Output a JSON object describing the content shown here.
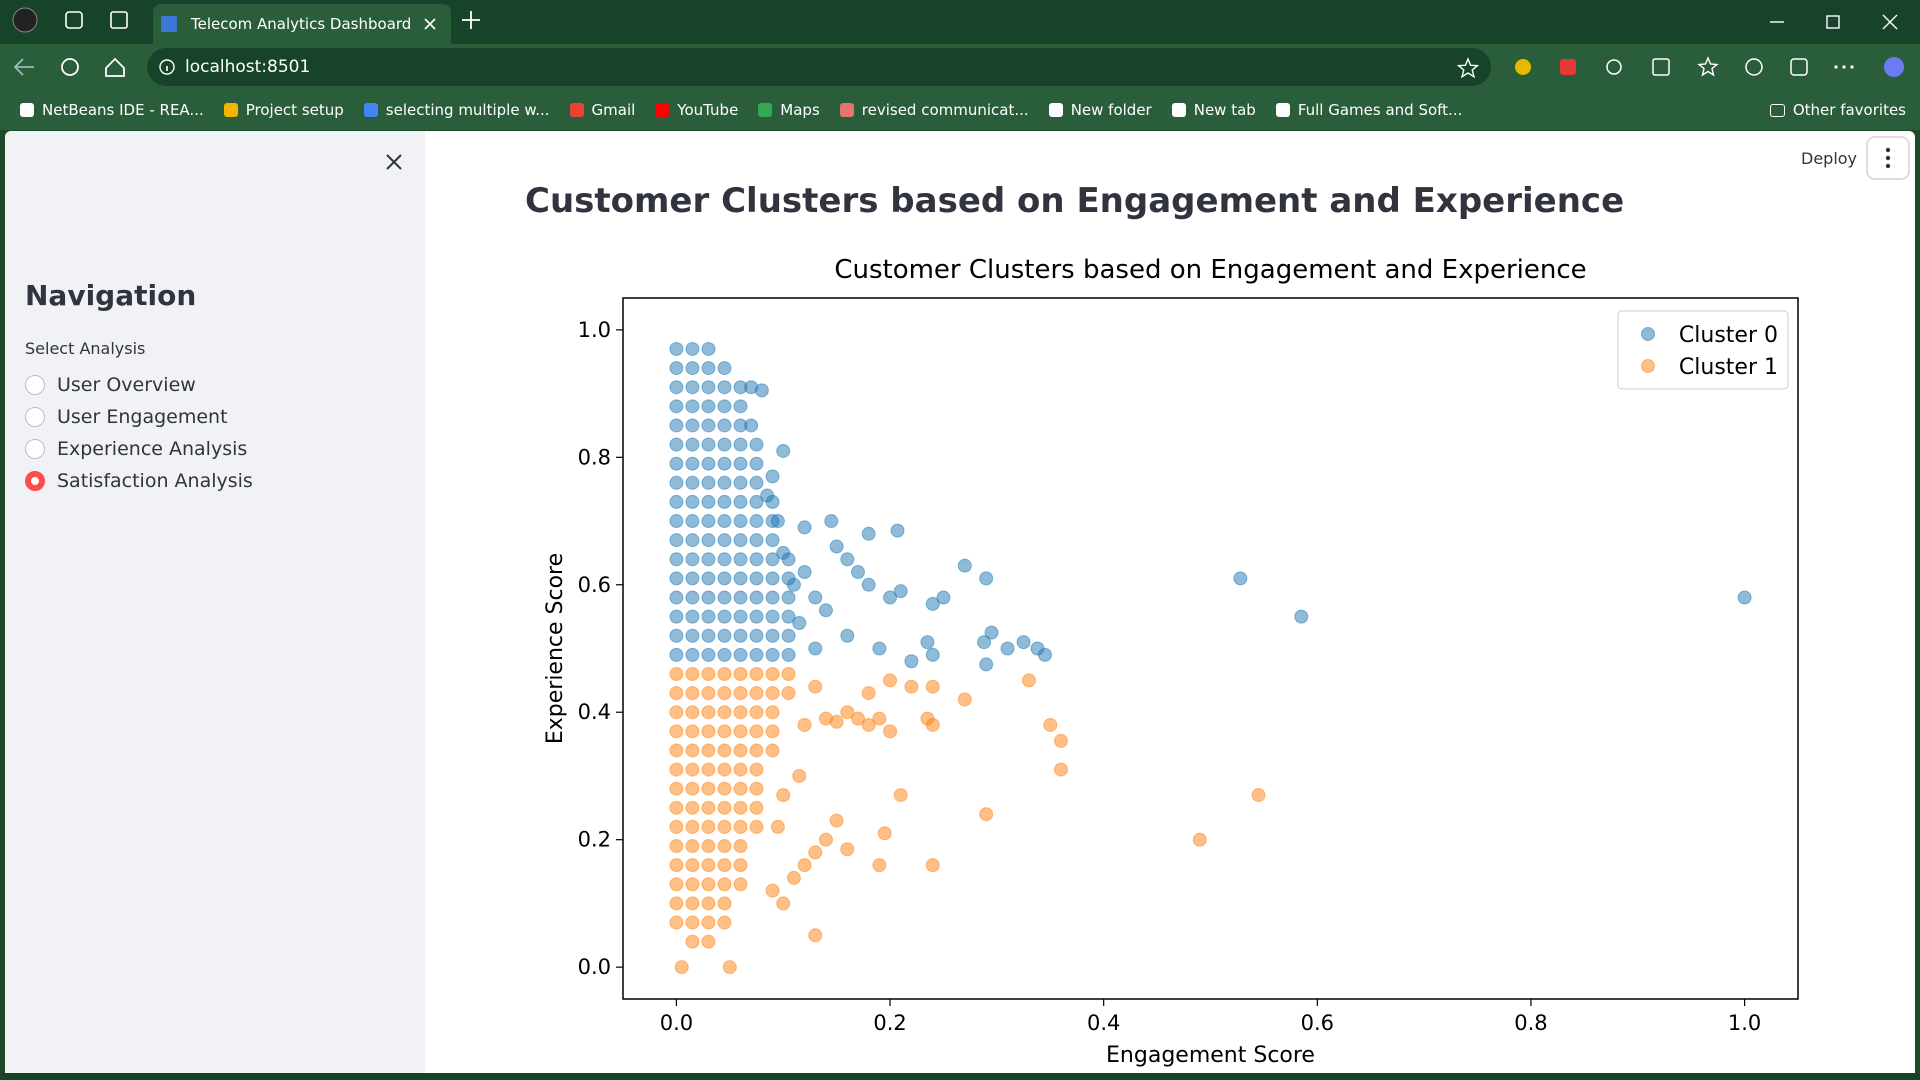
{
  "browser": {
    "tab_title": "Telecom Analytics Dashboard",
    "url": "localhost:8501",
    "bookmarks": [
      "NetBeans IDE - REA...",
      "Project setup",
      "selecting multiple w...",
      "Gmail",
      "YouTube",
      "Maps",
      "revised communicat...",
      "New folder",
      "New tab",
      "Full Games and Soft..."
    ],
    "other_favorites": "Other favorites"
  },
  "app": {
    "deploy": "Deploy",
    "header": "Customer Clusters based on Engagement and Experience",
    "sidebar": {
      "title": "Navigation",
      "select_label": "Select Analysis",
      "options": [
        "User Overview",
        "User Engagement",
        "Experience Analysis",
        "Satisfaction Analysis"
      ],
      "selected": 3
    }
  },
  "chart_data": {
    "type": "scatter",
    "title": "Customer Clusters based on Engagement and Experience",
    "x_label": "Engagement Score",
    "y_label": "Experience Score",
    "xlim": [
      -0.05,
      1.05
    ],
    "ylim": [
      -0.05,
      1.05
    ],
    "xticks": [
      {
        "value": 0,
        "label": "0.0"
      },
      0.2,
      0.4,
      0.6,
      0.8,
      {
        "value": 1,
        "label": "1.0"
      }
    ],
    "yticks": [
      {
        "value": 0,
        "label": "0.0"
      },
      0.2,
      0.4,
      0.6,
      0.8,
      {
        "value": 1,
        "label": "1.0"
      }
    ],
    "legend": "upper right",
    "grid": false,
    "series": [
      {
        "name": "Cluster 0",
        "color": "#1f77b4",
        "x": [
          0,
          0.015,
          0.03,
          0,
          0.015,
          0.03,
          0.045,
          0,
          0.015,
          0.03,
          0.045,
          0.06,
          0,
          0.015,
          0.03,
          0.045,
          0.06,
          0,
          0.015,
          0.03,
          0.045,
          0.06,
          0,
          0.015,
          0.03,
          0.045,
          0.06,
          0.075,
          0,
          0.015,
          0.03,
          0.045,
          0.06,
          0.075,
          0,
          0.015,
          0.03,
          0.045,
          0.06,
          0.075,
          0,
          0.015,
          0.03,
          0.045,
          0.06,
          0.075,
          0.09,
          0,
          0.015,
          0.03,
          0.045,
          0.06,
          0.075,
          0.09,
          0,
          0.015,
          0.03,
          0.045,
          0.06,
          0.075,
          0.09,
          0,
          0.015,
          0.03,
          0.045,
          0.06,
          0.075,
          0.09,
          0.105,
          0,
          0.015,
          0.03,
          0.045,
          0.06,
          0.075,
          0.09,
          0.105,
          0,
          0.015,
          0.03,
          0.045,
          0.06,
          0.075,
          0.09,
          0.105,
          0,
          0.015,
          0.03,
          0.045,
          0.06,
          0.075,
          0.09,
          0.105,
          0,
          0.015,
          0.03,
          0.045,
          0.06,
          0.075,
          0.09,
          0.105,
          0,
          0.015,
          0.03,
          0.045,
          0.06,
          0.075,
          0.09,
          0.105,
          1.0,
          0.528,
          0.585,
          0.29,
          0.27,
          0.25,
          0.24,
          0.235,
          0.24,
          0.288,
          0.295,
          0.31,
          0.325,
          0.338,
          0.345,
          0.29,
          0.207,
          0.18,
          0.145,
          0.12,
          0.1,
          0.08,
          0.07,
          0.2,
          0.21,
          0.18,
          0.17,
          0.16,
          0.15,
          0.14,
          0.13,
          0.12,
          0.11,
          0.1,
          0.095,
          0.085,
          0.09,
          0.07,
          0.22,
          0.19,
          0.16,
          0.13,
          0.115
        ],
        "y": [
          0.97,
          0.97,
          0.97,
          0.94,
          0.94,
          0.94,
          0.94,
          0.91,
          0.91,
          0.91,
          0.91,
          0.91,
          0.88,
          0.88,
          0.88,
          0.88,
          0.88,
          0.85,
          0.85,
          0.85,
          0.85,
          0.85,
          0.82,
          0.82,
          0.82,
          0.82,
          0.82,
          0.82,
          0.79,
          0.79,
          0.79,
          0.79,
          0.79,
          0.79,
          0.76,
          0.76,
          0.76,
          0.76,
          0.76,
          0.76,
          0.73,
          0.73,
          0.73,
          0.73,
          0.73,
          0.73,
          0.73,
          0.7,
          0.7,
          0.7,
          0.7,
          0.7,
          0.7,
          0.7,
          0.67,
          0.67,
          0.67,
          0.67,
          0.67,
          0.67,
          0.67,
          0.64,
          0.64,
          0.64,
          0.64,
          0.64,
          0.64,
          0.64,
          0.64,
          0.61,
          0.61,
          0.61,
          0.61,
          0.61,
          0.61,
          0.61,
          0.61,
          0.58,
          0.58,
          0.58,
          0.58,
          0.58,
          0.58,
          0.58,
          0.58,
          0.55,
          0.55,
          0.55,
          0.55,
          0.55,
          0.55,
          0.55,
          0.55,
          0.52,
          0.52,
          0.52,
          0.52,
          0.52,
          0.52,
          0.52,
          0.52,
          0.49,
          0.49,
          0.49,
          0.49,
          0.49,
          0.49,
          0.49,
          0.49,
          0.58,
          0.61,
          0.55,
          0.61,
          0.63,
          0.58,
          0.57,
          0.51,
          0.49,
          0.51,
          0.525,
          0.5,
          0.51,
          0.5,
          0.49,
          0.475,
          0.685,
          0.68,
          0.7,
          0.69,
          0.81,
          0.905,
          0.91,
          0.58,
          0.59,
          0.6,
          0.62,
          0.64,
          0.66,
          0.56,
          0.58,
          0.62,
          0.6,
          0.65,
          0.7,
          0.74,
          0.77,
          0.85,
          0.48,
          0.5,
          0.52,
          0.5,
          0.54
        ]
      },
      {
        "name": "Cluster 1",
        "color": "#ff7f0e",
        "x": [
          0,
          0.015,
          0.03,
          0.045,
          0.06,
          0.075,
          0.09,
          0.105,
          0,
          0.015,
          0.03,
          0.045,
          0.06,
          0.075,
          0.09,
          0.105,
          0,
          0.015,
          0.03,
          0.045,
          0.06,
          0.075,
          0.09,
          0,
          0.015,
          0.03,
          0.045,
          0.06,
          0.075,
          0.09,
          0,
          0.015,
          0.03,
          0.045,
          0.06,
          0.075,
          0.09,
          0,
          0.015,
          0.03,
          0.045,
          0.06,
          0.075,
          0,
          0.015,
          0.03,
          0.045,
          0.06,
          0.075,
          0,
          0.015,
          0.03,
          0.045,
          0.06,
          0.075,
          0,
          0.015,
          0.03,
          0.045,
          0.06,
          0.075,
          0,
          0.015,
          0.03,
          0.045,
          0.06,
          0,
          0.015,
          0.03,
          0.045,
          0.06,
          0,
          0.015,
          0.03,
          0.045,
          0.06,
          0,
          0.015,
          0.03,
          0.045,
          0,
          0.015,
          0.03,
          0.045,
          0.015,
          0.03,
          0.49,
          0.545,
          0.36,
          0.36,
          0.35,
          0.33,
          0.29,
          0.27,
          0.24,
          0.24,
          0.235,
          0.24,
          0.21,
          0.195,
          0.19,
          0.2,
          0.19,
          0.18,
          0.17,
          0.16,
          0.15,
          0.14,
          0.13,
          0.12,
          0.115,
          0.1,
          0.095,
          0.09,
          0.1,
          0.13,
          0.05,
          0.005,
          0.15,
          0.14,
          0.13,
          0.12,
          0.16,
          0.11,
          0.2,
          0.18,
          0.22
        ],
        "y": [
          0.46,
          0.46,
          0.46,
          0.46,
          0.46,
          0.46,
          0.46,
          0.46,
          0.43,
          0.43,
          0.43,
          0.43,
          0.43,
          0.43,
          0.43,
          0.43,
          0.4,
          0.4,
          0.4,
          0.4,
          0.4,
          0.4,
          0.4,
          0.37,
          0.37,
          0.37,
          0.37,
          0.37,
          0.37,
          0.37,
          0.34,
          0.34,
          0.34,
          0.34,
          0.34,
          0.34,
          0.34,
          0.31,
          0.31,
          0.31,
          0.31,
          0.31,
          0.31,
          0.28,
          0.28,
          0.28,
          0.28,
          0.28,
          0.28,
          0.25,
          0.25,
          0.25,
          0.25,
          0.25,
          0.25,
          0.22,
          0.22,
          0.22,
          0.22,
          0.22,
          0.22,
          0.19,
          0.19,
          0.19,
          0.19,
          0.19,
          0.16,
          0.16,
          0.16,
          0.16,
          0.16,
          0.13,
          0.13,
          0.13,
          0.13,
          0.13,
          0.1,
          0.1,
          0.1,
          0.1,
          0.07,
          0.07,
          0.07,
          0.07,
          0.04,
          0.04,
          0.2,
          0.27,
          0.31,
          0.355,
          0.38,
          0.45,
          0.24,
          0.42,
          0.44,
          0.38,
          0.39,
          0.16,
          0.27,
          0.21,
          0.16,
          0.37,
          0.39,
          0.38,
          0.39,
          0.4,
          0.385,
          0.39,
          0.44,
          0.38,
          0.3,
          0.27,
          0.22,
          0.12,
          0.1,
          0.05,
          0.0,
          0.0,
          0.23,
          0.2,
          0.18,
          0.16,
          0.185,
          0.14,
          0.45,
          0.43,
          0.44
        ]
      }
    ]
  }
}
